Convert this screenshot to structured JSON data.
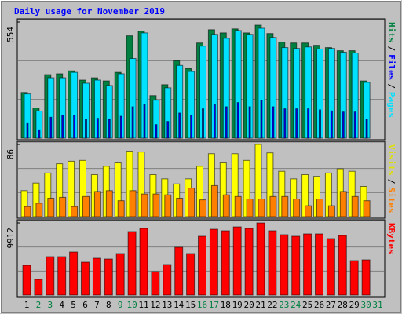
{
  "chart_data": [
    {
      "type": "bar",
      "title": "Daily usage for November 2019",
      "ylim": [
        0,
        554
      ],
      "yticks": [
        554
      ],
      "legend_separator": "/",
      "series": [
        {
          "name": "Hits",
          "color": "#008040",
          "values": [
            218,
            144,
            303,
            307,
            321,
            277,
            288,
            273,
            314,
            488,
            510,
            203,
            255,
            369,
            332,
            454,
            517,
            502,
            521,
            502,
            539,
            499,
            458,
            454,
            454,
            443,
            432,
            417,
            417,
            273,
            0
          ]
        },
        {
          "name": "Files",
          "color": "#0000ff",
          "values": [
            70,
            40,
            100,
            110,
            110,
            90,
            95,
            90,
            105,
            150,
            160,
            65,
            80,
            120,
            110,
            140,
            160,
            150,
            170,
            150,
            180,
            150,
            140,
            140,
            140,
            135,
            130,
            125,
            125,
            90,
            0
          ]
        },
        {
          "name": "Pages",
          "color": "#00e0ff",
          "values": [
            211,
            129,
            288,
            288,
            314,
            262,
            277,
            251,
            307,
            380,
            502,
            181,
            240,
            347,
            318,
            439,
            495,
            476,
            513,
            495,
            524,
            480,
            432,
            428,
            435,
            425,
            428,
            410,
            406,
            266,
            0
          ]
        }
      ]
    },
    {
      "type": "bar",
      "ylim": [
        0,
        86
      ],
      "yticks": [
        86
      ],
      "legend_separator": "/",
      "series": [
        {
          "name": "Visits",
          "color": "#ffff00",
          "values": [
            31,
            40,
            52,
            63,
            66,
            67,
            50,
            60,
            64,
            78,
            77,
            50,
            45,
            39,
            45,
            60,
            75,
            64,
            75,
            67,
            86,
            76,
            54,
            45,
            50,
            48,
            52,
            57,
            54,
            36,
            0
          ]
        },
        {
          "name": "Sites",
          "color": "#ff8000",
          "values": [
            12,
            16,
            22,
            23,
            12,
            24,
            30,
            31,
            19,
            31,
            27,
            27,
            26,
            22,
            34,
            20,
            37,
            26,
            24,
            21,
            21,
            24,
            24,
            21,
            13,
            21,
            13,
            30,
            24,
            19,
            0
          ]
        }
      ]
    },
    {
      "type": "bar",
      "ylim": [
        0,
        9912
      ],
      "yticks": [
        9912
      ],
      "categories": [
        "1",
        "2",
        "3",
        "4",
        "5",
        "6",
        "7",
        "8",
        "9",
        "10",
        "11",
        "12",
        "13",
        "14",
        "15",
        "16",
        "17",
        "18",
        "19",
        "20",
        "21",
        "22",
        "23",
        "24",
        "25",
        "26",
        "27",
        "28",
        "29",
        "30",
        "31"
      ],
      "category_colors": [
        "#000000",
        "#008040",
        "#008040",
        "#000000",
        "#000000",
        "#000000",
        "#000000",
        "#000000",
        "#008040",
        "#008040",
        "#000000",
        "#000000",
        "#000000",
        "#000000",
        "#000000",
        "#008040",
        "#008040",
        "#000000",
        "#000000",
        "#000000",
        "#000000",
        "#000000",
        "#008040",
        "#008040",
        "#000000",
        "#000000",
        "#000000",
        "#000000",
        "#000000",
        "#008040",
        "#008040"
      ],
      "series": [
        {
          "name": "KBytes",
          "color": "#ff0000",
          "values": [
            4094,
            2155,
            5279,
            5279,
            5926,
            4525,
            5064,
            4956,
            5710,
            8727,
            9158,
            3232,
            4202,
            6572,
            5710,
            8081,
            9050,
            8835,
            9373,
            9158,
            9912,
            8835,
            8296,
            8081,
            8404,
            8404,
            7757,
            8188,
            4741,
            4848,
            0
          ]
        }
      ]
    }
  ]
}
